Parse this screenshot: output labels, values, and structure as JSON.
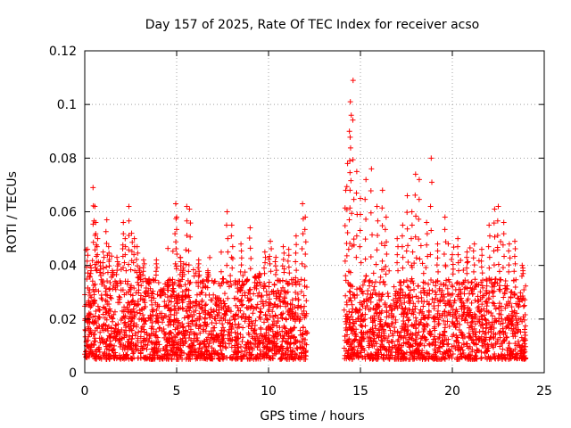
{
  "colors": {
    "series": "#ff0000",
    "grid": "#a0a0a0",
    "axis": "#000000",
    "background": "#ffffff"
  },
  "chart_data": {
    "type": "scatter",
    "marker": "plus",
    "title": "Day 157 of 2025, Rate Of TEC Index for receiver acso",
    "xlabel": "GPS time / hours",
    "ylabel": "ROTI / TECUs",
    "xlim": [
      0,
      25
    ],
    "ylim": [
      0,
      0.12
    ],
    "xticks": [
      0,
      5,
      10,
      15,
      20,
      25
    ],
    "yticks": [
      0,
      0.02,
      0.04,
      0.06,
      0.08,
      0.1,
      0.12
    ],
    "xtick_labels": [
      "0",
      "5",
      "10",
      "15",
      "20",
      "25"
    ],
    "ytick_labels": [
      "0",
      "0.02",
      "0.04",
      "0.06",
      "0.08",
      "0.1",
      "0.12"
    ],
    "grid": true,
    "data_gap_hours": [
      12.1,
      14.1
    ],
    "series": [
      {
        "name": "ROTI",
        "typical_range": [
          0.005,
          0.035
        ],
        "points_x": [
          0.15,
          0.3,
          0.45,
          0.55,
          0.6,
          0.7,
          0.85,
          1.0,
          1.2,
          1.3,
          1.5,
          1.75,
          2.1,
          2.2,
          2.4,
          2.55,
          2.7,
          2.85,
          3.0,
          3.2,
          3.5,
          3.9,
          4.5,
          4.8,
          4.95,
          5.0,
          5.2,
          5.35,
          5.55,
          5.7,
          6.2,
          6.7,
          7.5,
          7.75,
          8.0,
          8.5,
          8.8,
          9.0,
          9.3,
          9.5,
          9.8,
          10.1,
          10.4,
          10.8,
          11.1,
          11.5,
          11.85,
          12.0,
          14.2,
          14.3,
          14.4,
          14.45,
          14.5,
          14.6,
          14.8,
          15.0,
          15.3,
          15.6,
          15.9,
          16.2,
          16.4,
          17.0,
          17.3,
          17.55,
          17.8,
          18.0,
          18.2,
          18.6,
          18.85,
          19.2,
          19.6,
          20.0,
          20.3,
          20.8,
          21.2,
          21.6,
          22.0,
          22.3,
          22.5,
          22.8,
          23.1,
          23.4,
          23.8
        ],
        "points_y": [
          0.046,
          0.04,
          0.069,
          0.062,
          0.056,
          0.05,
          0.041,
          0.045,
          0.057,
          0.047,
          0.038,
          0.043,
          0.056,
          0.05,
          0.062,
          0.052,
          0.05,
          0.047,
          0.039,
          0.042,
          0.033,
          0.042,
          0.032,
          0.029,
          0.063,
          0.058,
          0.043,
          0.039,
          0.062,
          0.061,
          0.042,
          0.038,
          0.035,
          0.06,
          0.055,
          0.048,
          0.034,
          0.054,
          0.036,
          0.037,
          0.045,
          0.049,
          0.043,
          0.047,
          0.046,
          0.051,
          0.063,
          0.058,
          0.068,
          0.078,
          0.09,
          0.101,
          0.096,
          0.109,
          0.075,
          0.065,
          0.072,
          0.076,
          0.062,
          0.068,
          0.058,
          0.05,
          0.055,
          0.066,
          0.06,
          0.074,
          0.072,
          0.056,
          0.08,
          0.048,
          0.058,
          0.044,
          0.05,
          0.045,
          0.048,
          0.046,
          0.055,
          0.061,
          0.062,
          0.056,
          0.048,
          0.049,
          0.04
        ]
      }
    ]
  }
}
